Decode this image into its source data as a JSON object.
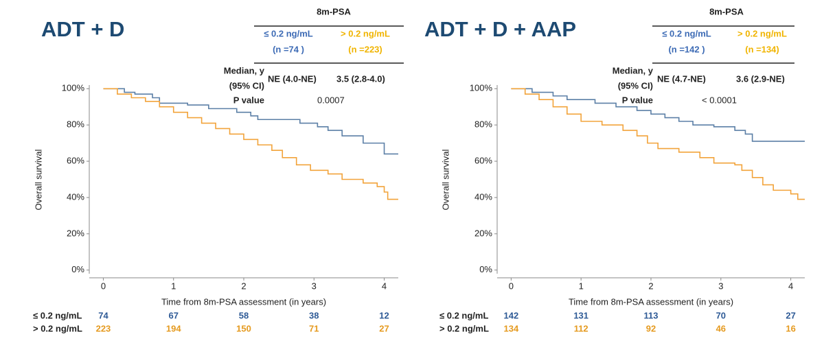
{
  "chart_data": [
    {
      "type": "line",
      "title": "ADT + D",
      "y_label": "Overall survival",
      "x_label": "Time from 8m-PSA assessment (in years)",
      "xlim": [
        -0.2,
        4.2
      ],
      "ylim": [
        -2,
        102
      ],
      "xticks": [
        0,
        1,
        2,
        3,
        4
      ],
      "yticks": [
        {
          "value": 0,
          "label": "0%"
        },
        {
          "value": 20,
          "label": "20%"
        },
        {
          "value": 40,
          "label": "40%"
        },
        {
          "value": 60,
          "label": "60%"
        },
        {
          "value": 80,
          "label": "80%"
        },
        {
          "value": 100,
          "label": "100%"
        }
      ],
      "table": {
        "header": "8m-PSA",
        "median_label": [
          "Median, y",
          "(95% CI)"
        ],
        "median": [
          "NE (4.0-NE)",
          "3.5 (2.8-4.0)"
        ],
        "p_label": "P value",
        "p": "0.0007"
      },
      "series": [
        {
          "name": "≤ 0.2 ng/mL",
          "n_label": "(n =74 )",
          "color": "#5b7fa6",
          "label_color": "#3d6bb5",
          "risk_color": "#2e5a96",
          "x": [
            0,
            0.3,
            0.45,
            0.7,
            0.8,
            1.2,
            1.5,
            1.9,
            2.1,
            2.2,
            2.8,
            3.05,
            3.2,
            3.4,
            3.7,
            4.0,
            4.2
          ],
          "values": [
            100,
            98,
            97,
            95,
            92,
            91,
            89,
            87,
            85,
            83,
            81,
            79,
            77,
            74,
            70,
            64,
            64
          ],
          "at_risk": [
            74,
            67,
            58,
            38,
            12
          ]
        },
        {
          "name": "> 0.2 ng/mL",
          "n_label": "(n =223)",
          "color": "#f2a33a",
          "label_color": "#f0b400",
          "risk_color": "#e59a1f",
          "x": [
            0,
            0.2,
            0.4,
            0.6,
            0.8,
            1.0,
            1.2,
            1.4,
            1.6,
            1.8,
            2.0,
            2.2,
            2.4,
            2.55,
            2.75,
            2.95,
            3.2,
            3.4,
            3.7,
            3.9,
            4.0,
            4.05,
            4.2
          ],
          "values": [
            100,
            97,
            95,
            93,
            90,
            87,
            84,
            81,
            78,
            75,
            72,
            69,
            66,
            62,
            58,
            55,
            53,
            50,
            48,
            46,
            43,
            39,
            39
          ],
          "at_risk": [
            223,
            194,
            150,
            71,
            27
          ]
        }
      ]
    },
    {
      "type": "line",
      "title": "ADT + D + AAP",
      "y_label": "Overall survival",
      "x_label": "Time from 8m-PSA assessment (in years)",
      "xlim": [
        -0.2,
        4.2
      ],
      "ylim": [
        -2,
        102
      ],
      "xticks": [
        0,
        1,
        2,
        3,
        4
      ],
      "yticks": [
        {
          "value": 0,
          "label": "0%"
        },
        {
          "value": 20,
          "label": "20%"
        },
        {
          "value": 40,
          "label": "40%"
        },
        {
          "value": 60,
          "label": "60%"
        },
        {
          "value": 80,
          "label": "80%"
        },
        {
          "value": 100,
          "label": "100%"
        }
      ],
      "table": {
        "header": "8m-PSA",
        "median_label": [
          "Median, y",
          "(95% CI)"
        ],
        "median": [
          "NE (4.7-NE)",
          "3.6 (2.9-NE)"
        ],
        "p_label": "P value",
        "p": "< 0.0001"
      },
      "series": [
        {
          "name": "≤ 0.2 ng/mL",
          "n_label": "(n =142 )",
          "color": "#5b7fa6",
          "label_color": "#3d6bb5",
          "risk_color": "#2e5a96",
          "x": [
            0,
            0.3,
            0.6,
            0.8,
            1.2,
            1.5,
            1.8,
            2.0,
            2.2,
            2.4,
            2.6,
            2.9,
            3.2,
            3.35,
            3.45,
            4.2
          ],
          "values": [
            100,
            98,
            96,
            94,
            92,
            90,
            88,
            86,
            84,
            82,
            80,
            79,
            77,
            75,
            71,
            71
          ],
          "at_risk": [
            142,
            131,
            113,
            70,
            27
          ]
        },
        {
          "name": "> 0.2 ng/mL",
          "n_label": "(n =134)",
          "color": "#f2a33a",
          "label_color": "#f0b400",
          "risk_color": "#e59a1f",
          "x": [
            0,
            0.2,
            0.4,
            0.6,
            0.8,
            1.0,
            1.3,
            1.6,
            1.8,
            1.95,
            2.1,
            2.4,
            2.7,
            2.9,
            3.2,
            3.3,
            3.45,
            3.6,
            3.75,
            4.0,
            4.1,
            4.2
          ],
          "values": [
            100,
            97,
            94,
            90,
            86,
            82,
            80,
            77,
            74,
            70,
            67,
            65,
            62,
            59,
            58,
            55,
            51,
            47,
            44,
            42,
            39,
            39
          ],
          "at_risk": [
            134,
            112,
            92,
            46,
            16
          ]
        }
      ]
    }
  ]
}
